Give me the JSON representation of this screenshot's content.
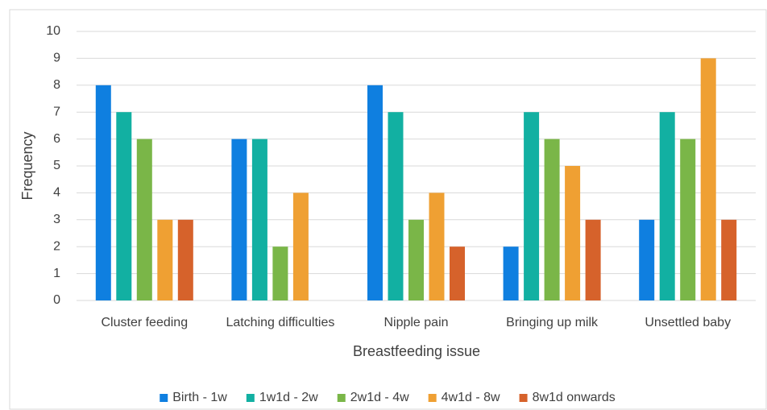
{
  "chart_data": {
    "type": "bar",
    "x_label": "Breastfeeding issue",
    "y_label": "Frequency",
    "categories": [
      "Cluster feeding",
      "Latching difficulties",
      "Nipple pain",
      "Bringing up milk",
      "Unsettled baby"
    ],
    "series": [
      {
        "name": "Birth - 1w",
        "color": "#0f7fe0",
        "values": [
          8,
          6,
          8,
          2,
          3
        ]
      },
      {
        "name": "1w1d - 2w",
        "color": "#12b0a2",
        "values": [
          7,
          6,
          7,
          7,
          7
        ]
      },
      {
        "name": "2w1d - 4w",
        "color": "#7ab648",
        "values": [
          6,
          2,
          3,
          6,
          6
        ]
      },
      {
        "name": "4w1d - 8w",
        "color": "#efa033",
        "values": [
          3,
          4,
          4,
          5,
          9
        ]
      },
      {
        "name": "8w1d onwards",
        "color": "#d6622b",
        "values": [
          3,
          0,
          2,
          3,
          3
        ]
      }
    ],
    "ylim": [
      0,
      10
    ],
    "yticks": [
      0,
      1,
      2,
      3,
      4,
      5,
      6,
      7,
      8,
      9,
      10
    ],
    "grid": true,
    "legend": "bottom"
  }
}
